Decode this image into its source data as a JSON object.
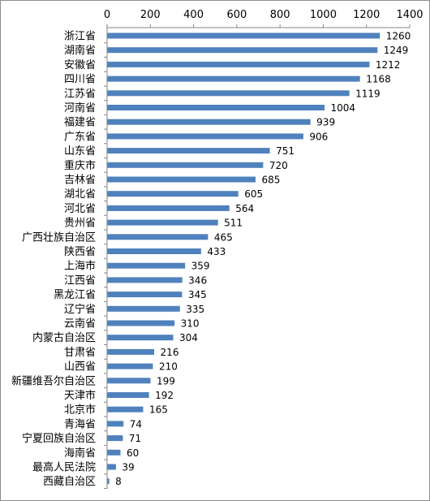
{
  "chart_data": {
    "type": "bar",
    "orientation": "horizontal",
    "categories": [
      "浙江省",
      "湖南省",
      "安徽省",
      "四川省",
      "江苏省",
      "河南省",
      "福建省",
      "广东省",
      "山东省",
      "重庆市",
      "吉林省",
      "湖北省",
      "河北省",
      "贵州省",
      "广西壮族自治区",
      "陕西省",
      "上海市",
      "江西省",
      "黑龙江省",
      "辽宁省",
      "云南省",
      "内蒙古自治区",
      "甘肃省",
      "山西省",
      "新疆维吾尔自治区",
      "天津市",
      "北京市",
      "青海省",
      "宁夏回族自治区",
      "海南省",
      "最高人民法院",
      "西藏自治区"
    ],
    "values": [
      1260,
      1249,
      1212,
      1168,
      1119,
      1004,
      939,
      906,
      751,
      720,
      685,
      605,
      564,
      511,
      465,
      433,
      359,
      346,
      345,
      335,
      310,
      304,
      216,
      210,
      199,
      192,
      165,
      74,
      71,
      60,
      39,
      8
    ],
    "value_labels": [
      "1260",
      "1249",
      "1212",
      "1168",
      "1119",
      "1004",
      "939",
      "906",
      "751",
      "720",
      "685",
      "605",
      "564",
      "511",
      "465",
      "433",
      "359",
      "346",
      "345",
      "335",
      "310",
      "304",
      "216",
      "210",
      "199",
      "192",
      "165",
      "74",
      "71",
      "60",
      "39",
      "8"
    ],
    "xlim": [
      0,
      1400
    ],
    "x_ticks": [
      "0",
      "200",
      "400",
      "600",
      "800",
      "1000",
      "1200",
      "1400"
    ],
    "x_tick_values": [
      0,
      200,
      400,
      600,
      800,
      1000,
      1200,
      1400
    ],
    "axis_position": "top",
    "grid": false,
    "legend": "none",
    "title": "",
    "xlabel": "",
    "ylabel": "",
    "colors": {
      "bar": "#4F81BD",
      "axis": "#868686",
      "frame": "#8C8C8C",
      "text": "#000000"
    }
  }
}
